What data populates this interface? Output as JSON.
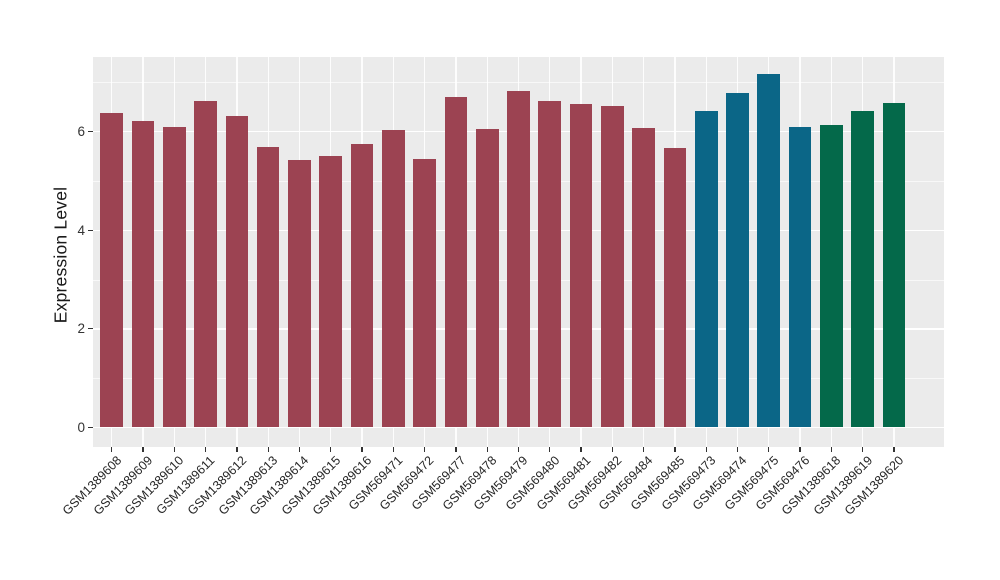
{
  "chart_data": {
    "type": "bar",
    "title": "",
    "xlabel": "",
    "ylabel": "Expression Level",
    "ylim": [
      -0.4,
      7.52
    ],
    "yticks": [
      0,
      2,
      4,
      6
    ],
    "yticks_minor": [
      1,
      3,
      5,
      7
    ],
    "grid": true,
    "legend": "none",
    "panel_background": "#EBEBEB",
    "gridline_color": "#FFFFFF",
    "palette": {
      "maroon": "#9C4352",
      "teal": "#0B6687",
      "green": "#04694A"
    },
    "categories": [
      "GSM1389608",
      "GSM1389609",
      "GSM1389610",
      "GSM1389611",
      "GSM1389612",
      "GSM1389613",
      "GSM1389614",
      "GSM1389615",
      "GSM1389616",
      "GSM569471",
      "GSM569472",
      "GSM569477",
      "GSM569478",
      "GSM569479",
      "GSM569480",
      "GSM569481",
      "GSM569482",
      "GSM569484",
      "GSM569485",
      "GSM569473",
      "GSM569474",
      "GSM569475",
      "GSM569476",
      "GSM1389618",
      "GSM1389619",
      "GSM1389620"
    ],
    "values": [
      6.38,
      6.22,
      6.1,
      6.62,
      6.32,
      5.69,
      5.42,
      5.5,
      5.75,
      6.04,
      5.44,
      6.7,
      6.06,
      6.82,
      6.63,
      6.57,
      6.52,
      6.08,
      5.66,
      6.43,
      6.78,
      7.18,
      6.09,
      6.13,
      6.43,
      6.58
    ],
    "bar_colors": [
      "#9C4352",
      "#9C4352",
      "#9C4352",
      "#9C4352",
      "#9C4352",
      "#9C4352",
      "#9C4352",
      "#9C4352",
      "#9C4352",
      "#9C4352",
      "#9C4352",
      "#9C4352",
      "#9C4352",
      "#9C4352",
      "#9C4352",
      "#9C4352",
      "#9C4352",
      "#9C4352",
      "#9C4352",
      "#0B6687",
      "#0B6687",
      "#0B6687",
      "#0B6687",
      "#04694A",
      "#04694A",
      "#04694A"
    ]
  }
}
